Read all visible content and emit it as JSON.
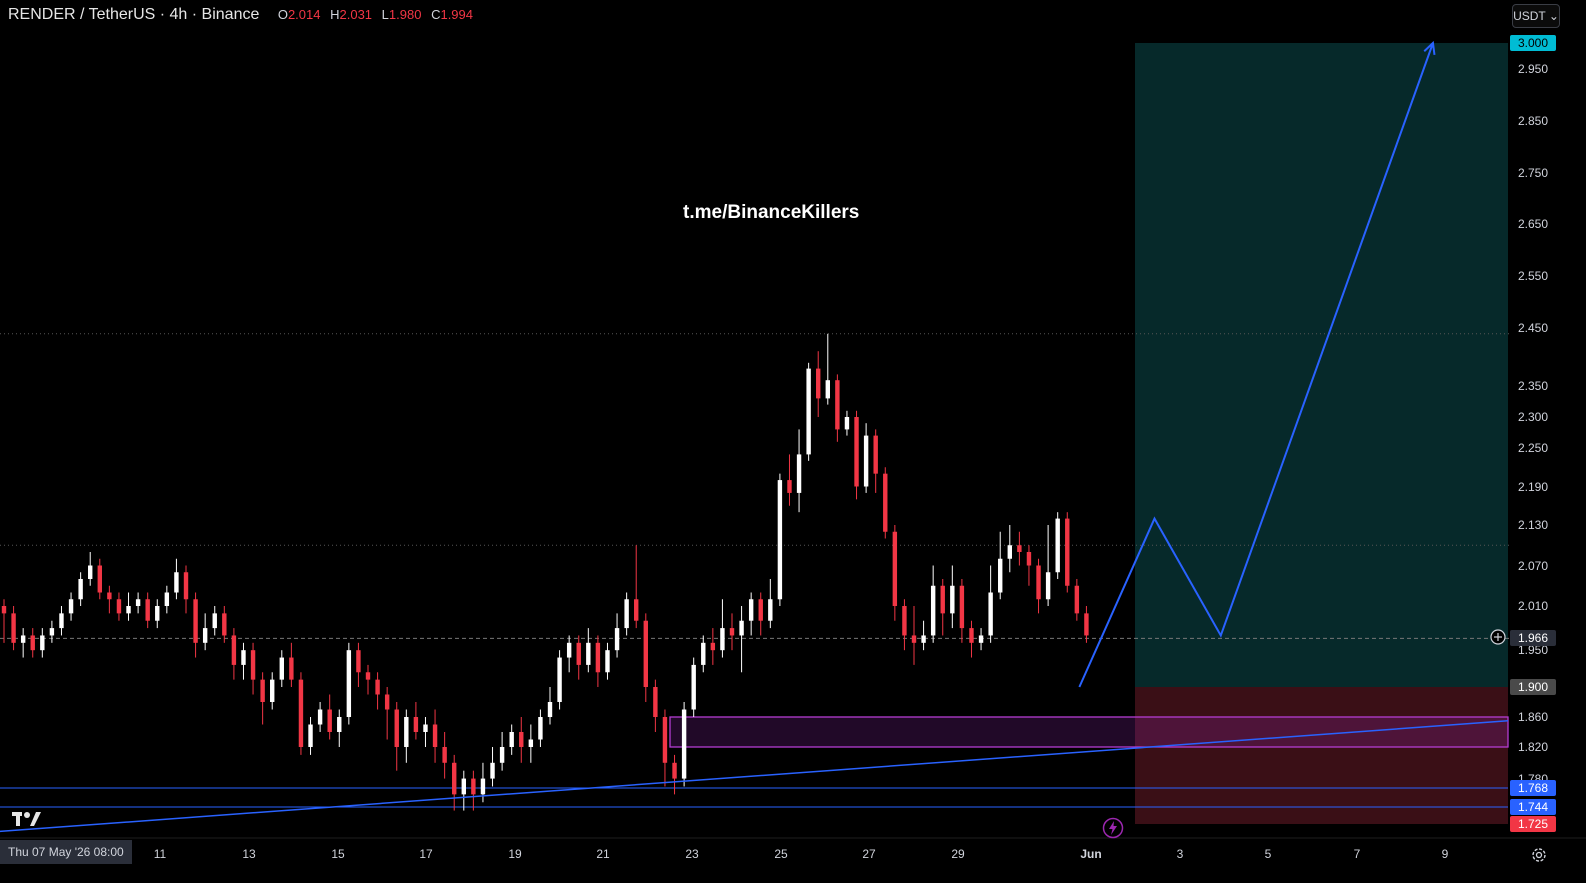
{
  "header": {
    "symbol_line": "RENDER / TetherUS · 4h · Binance",
    "ohlc": [
      {
        "key": "O",
        "value": "2.014"
      },
      {
        "key": "H",
        "value": "2.031"
      },
      {
        "key": "L",
        "value": "1.980"
      },
      {
        "key": "C",
        "value": "1.994"
      }
    ]
  },
  "currency_selector": "USDT",
  "watermark": "t.me/BinanceKillers",
  "price_axis": {
    "ticks": [
      "2.950",
      "2.850",
      "2.750",
      "2.650",
      "2.550",
      "2.450",
      "2.350",
      "2.300",
      "2.250",
      "2.190",
      "2.130",
      "2.070",
      "2.010",
      "1.950",
      "1.860",
      "1.820",
      "1.780"
    ],
    "labels": [
      {
        "text": "3.000",
        "price": 3.0,
        "color": "#00bcd4",
        "text_color": "#000000"
      },
      {
        "text": "1.966",
        "price": 1.966,
        "color": "#2a2e39",
        "text_color": "#ffffff"
      },
      {
        "text": "1.900",
        "price": 1.9,
        "color": "#4a4a4a",
        "text_color": "#ffffff"
      },
      {
        "text": "1.768",
        "price": 1.768,
        "color": "#2962ff",
        "text_color": "#ffffff"
      },
      {
        "text": "1.744",
        "price": 1.744,
        "color": "#2962ff",
        "text_color": "#ffffff"
      },
      {
        "text": "1.725",
        "price": 1.725,
        "color": "#f23645",
        "text_color": "#ffffff"
      }
    ]
  },
  "time_axis": {
    "ticks": [
      "11",
      "13",
      "15",
      "17",
      "19",
      "21",
      "23",
      "25",
      "27",
      "29",
      "Jun",
      "3",
      "5",
      "7",
      "9"
    ],
    "cursor_date": "Thu 07 May '26   08:00"
  },
  "chart_data": {
    "type": "candlestick",
    "symbol": "RENDER/USDT",
    "interval": "4h",
    "last_price": 1.966,
    "ylim": [
      1.7,
      3.02
    ],
    "position": {
      "entry": 1.9,
      "target": 3.0,
      "stop": 1.725,
      "profit_color": "#06292a",
      "loss_color": "#3a0f16"
    },
    "demand_zone": {
      "top": 1.86,
      "bottom": 1.82,
      "color": "#b43cd2"
    },
    "horizontal_levels": [
      {
        "price": 2.44,
        "style": "dotted"
      },
      {
        "price": 2.1,
        "style": "dotted"
      },
      {
        "price": 1.966,
        "style": "dashed"
      },
      {
        "price": 1.768,
        "style": "solid"
      },
      {
        "price": 1.744,
        "style": "solid"
      }
    ],
    "trendline": {
      "start": {
        "day": 7.8,
        "price": 1.7
      },
      "end": {
        "day": 34.5,
        "price": 1.855
      }
    },
    "projection_path": [
      {
        "day": 31.8,
        "price": 1.9
      },
      {
        "day": 33.5,
        "price": 2.14
      },
      {
        "day": 35.0,
        "price": 1.97
      },
      {
        "day": 39.8,
        "price": 3.0
      }
    ],
    "candles": [
      [
        2.01,
        2.0,
        2.02,
        1.96
      ],
      [
        2.0,
        1.96,
        2.01,
        1.95
      ],
      [
        1.96,
        1.97,
        1.98,
        1.94
      ],
      [
        1.97,
        1.95,
        1.98,
        1.94
      ],
      [
        1.95,
        1.97,
        1.98,
        1.94
      ],
      [
        1.97,
        1.98,
        1.99,
        1.96
      ],
      [
        1.98,
        2.0,
        2.01,
        1.97
      ],
      [
        2.0,
        2.02,
        2.03,
        1.99
      ],
      [
        2.02,
        2.05,
        2.06,
        2.01
      ],
      [
        2.05,
        2.07,
        2.09,
        2.04
      ],
      [
        2.07,
        2.03,
        2.08,
        2.02
      ],
      [
        2.03,
        2.02,
        2.04,
        2.0
      ],
      [
        2.02,
        2.0,
        2.03,
        1.99
      ],
      [
        2.0,
        2.01,
        2.03,
        1.99
      ],
      [
        2.01,
        2.02,
        2.03,
        2.0
      ],
      [
        2.02,
        1.99,
        2.03,
        1.98
      ],
      [
        1.99,
        2.01,
        2.02,
        1.98
      ],
      [
        2.01,
        2.03,
        2.04,
        2.0
      ],
      [
        2.03,
        2.06,
        2.08,
        2.02
      ],
      [
        2.06,
        2.02,
        2.07,
        2.0
      ],
      [
        2.02,
        1.96,
        2.03,
        1.94
      ],
      [
        1.96,
        1.98,
        2.0,
        1.95
      ],
      [
        1.98,
        2.0,
        2.01,
        1.97
      ],
      [
        2.0,
        1.97,
        2.01,
        1.96
      ],
      [
        1.97,
        1.93,
        1.98,
        1.91
      ],
      [
        1.93,
        1.95,
        1.96,
        1.91
      ],
      [
        1.95,
        1.91,
        1.96,
        1.89
      ],
      [
        1.91,
        1.88,
        1.92,
        1.85
      ],
      [
        1.88,
        1.91,
        1.92,
        1.87
      ],
      [
        1.91,
        1.94,
        1.95,
        1.9
      ],
      [
        1.94,
        1.91,
        1.96,
        1.9
      ],
      [
        1.91,
        1.82,
        1.92,
        1.81
      ],
      [
        1.82,
        1.85,
        1.86,
        1.81
      ],
      [
        1.85,
        1.87,
        1.88,
        1.84
      ],
      [
        1.87,
        1.84,
        1.89,
        1.83
      ],
      [
        1.84,
        1.86,
        1.87,
        1.82
      ],
      [
        1.86,
        1.95,
        1.96,
        1.85
      ],
      [
        1.95,
        1.92,
        1.96,
        1.9
      ],
      [
        1.92,
        1.91,
        1.93,
        1.89
      ],
      [
        1.91,
        1.89,
        1.92,
        1.87
      ],
      [
        1.89,
        1.87,
        1.9,
        1.83
      ],
      [
        1.87,
        1.82,
        1.88,
        1.79
      ],
      [
        1.82,
        1.86,
        1.87,
        1.8
      ],
      [
        1.86,
        1.84,
        1.88,
        1.83
      ],
      [
        1.84,
        1.85,
        1.86,
        1.82
      ],
      [
        1.85,
        1.82,
        1.87,
        1.8
      ],
      [
        1.82,
        1.8,
        1.84,
        1.78
      ],
      [
        1.8,
        1.76,
        1.81,
        1.74
      ],
      [
        1.76,
        1.78,
        1.79,
        1.74
      ],
      [
        1.78,
        1.76,
        1.79,
        1.74
      ],
      [
        1.76,
        1.78,
        1.8,
        1.75
      ],
      [
        1.78,
        1.8,
        1.82,
        1.77
      ],
      [
        1.8,
        1.82,
        1.84,
        1.79
      ],
      [
        1.82,
        1.84,
        1.85,
        1.81
      ],
      [
        1.84,
        1.82,
        1.86,
        1.8
      ],
      [
        1.82,
        1.83,
        1.85,
        1.8
      ],
      [
        1.83,
        1.86,
        1.87,
        1.82
      ],
      [
        1.86,
        1.88,
        1.9,
        1.85
      ],
      [
        1.88,
        1.94,
        1.95,
        1.87
      ],
      [
        1.94,
        1.96,
        1.97,
        1.92
      ],
      [
        1.96,
        1.93,
        1.97,
        1.91
      ],
      [
        1.93,
        1.96,
        1.98,
        1.92
      ],
      [
        1.96,
        1.92,
        1.97,
        1.9
      ],
      [
        1.92,
        1.95,
        1.96,
        1.91
      ],
      [
        1.95,
        1.98,
        2.0,
        1.94
      ],
      [
        1.98,
        2.02,
        2.03,
        1.97
      ],
      [
        2.02,
        1.99,
        2.1,
        1.98
      ],
      [
        1.99,
        1.9,
        2.0,
        1.88
      ],
      [
        1.9,
        1.86,
        1.91,
        1.84
      ],
      [
        1.86,
        1.8,
        1.87,
        1.77
      ],
      [
        1.8,
        1.78,
        1.81,
        1.76
      ],
      [
        1.78,
        1.87,
        1.88,
        1.77
      ],
      [
        1.87,
        1.93,
        1.94,
        1.86
      ],
      [
        1.93,
        1.96,
        1.97,
        1.92
      ],
      [
        1.96,
        1.95,
        1.98,
        1.93
      ],
      [
        1.95,
        1.98,
        2.02,
        1.94
      ],
      [
        1.98,
        1.97,
        2.0,
        1.95
      ],
      [
        1.97,
        1.99,
        2.01,
        1.92
      ],
      [
        1.99,
        2.02,
        2.03,
        1.97
      ],
      [
        2.02,
        1.99,
        2.03,
        1.97
      ],
      [
        1.99,
        2.02,
        2.05,
        1.98
      ],
      [
        2.02,
        2.2,
        2.21,
        2.01
      ],
      [
        2.2,
        2.18,
        2.24,
        2.16
      ],
      [
        2.18,
        2.24,
        2.28,
        2.15
      ],
      [
        2.24,
        2.38,
        2.39,
        2.23
      ],
      [
        2.38,
        2.33,
        2.41,
        2.3
      ],
      [
        2.33,
        2.36,
        2.44,
        2.32
      ],
      [
        2.36,
        2.28,
        2.37,
        2.26
      ],
      [
        2.28,
        2.3,
        2.31,
        2.27
      ],
      [
        2.3,
        2.19,
        2.31,
        2.17
      ],
      [
        2.19,
        2.27,
        2.29,
        2.18
      ],
      [
        2.27,
        2.21,
        2.28,
        2.18
      ],
      [
        2.21,
        2.12,
        2.22,
        2.11
      ],
      [
        2.12,
        2.01,
        2.13,
        1.99
      ],
      [
        2.01,
        1.97,
        2.02,
        1.95
      ],
      [
        1.97,
        1.96,
        2.01,
        1.93
      ],
      [
        1.96,
        1.97,
        1.99,
        1.95
      ],
      [
        1.97,
        2.04,
        2.07,
        1.96
      ],
      [
        2.04,
        2.0,
        2.05,
        1.97
      ],
      [
        2.0,
        2.04,
        2.07,
        1.98
      ],
      [
        2.04,
        1.98,
        2.05,
        1.96
      ],
      [
        1.98,
        1.96,
        1.99,
        1.94
      ],
      [
        1.96,
        1.97,
        1.98,
        1.95
      ],
      [
        1.97,
        2.03,
        2.07,
        1.96
      ],
      [
        2.03,
        2.08,
        2.12,
        2.02
      ],
      [
        2.08,
        2.1,
        2.13,
        2.06
      ],
      [
        2.1,
        2.09,
        2.12,
        2.07
      ],
      [
        2.09,
        2.07,
        2.1,
        2.04
      ],
      [
        2.07,
        2.02,
        2.08,
        2.0
      ],
      [
        2.02,
        2.06,
        2.13,
        2.01
      ],
      [
        2.06,
        2.14,
        2.15,
        2.05
      ],
      [
        2.14,
        2.04,
        2.15,
        2.03
      ],
      [
        2.04,
        2.0,
        2.05,
        1.99
      ],
      [
        2.0,
        1.97,
        2.01,
        1.96
      ]
    ]
  }
}
